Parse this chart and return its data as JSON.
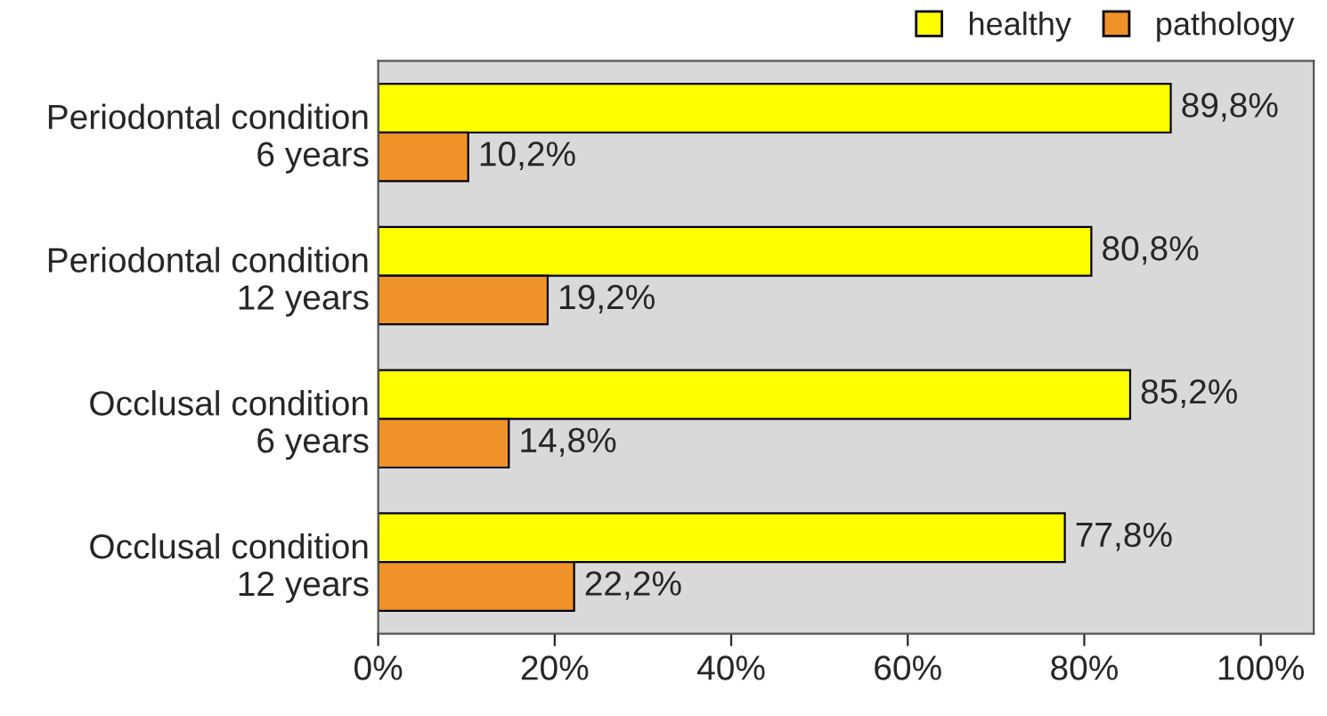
{
  "chart_data": {
    "type": "bar",
    "orientation": "horizontal",
    "categories": [
      "Periodontal condition\n6 years",
      "Periodontal condition\n12 years",
      "Occlusal condition\n6 years",
      "Occlusal condition\n12 years"
    ],
    "series": [
      {
        "name": "healthy",
        "color": "#ffff00",
        "values": [
          89.8,
          80.8,
          85.2,
          77.8
        ],
        "value_labels": [
          "89,8%",
          "80,8%",
          "85,2%",
          "77,8%"
        ]
      },
      {
        "name": "pathology",
        "color": "#f0922a",
        "values": [
          10.2,
          19.2,
          14.8,
          22.2
        ],
        "value_labels": [
          "10,2%",
          "19,2%",
          "14,8%",
          "22,2%"
        ]
      }
    ],
    "xlim": [
      0,
      106
    ],
    "xticks": [
      {
        "value": 0,
        "label": "0%"
      },
      {
        "value": 20,
        "label": "20%"
      },
      {
        "value": 40,
        "label": "40%"
      },
      {
        "value": 60,
        "label": "60%"
      },
      {
        "value": 80,
        "label": "80%"
      },
      {
        "value": 100,
        "label": "100%"
      }
    ],
    "grid": false,
    "legend": "top right"
  }
}
